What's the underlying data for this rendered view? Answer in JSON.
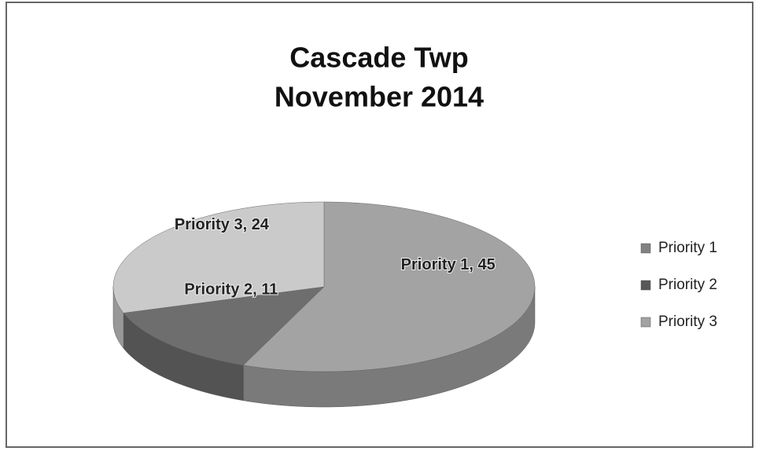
{
  "chart_data": {
    "type": "pie",
    "title": "Cascade Twp",
    "subtitle": "November 2014",
    "categories": [
      "Priority 1",
      "Priority 2",
      "Priority 3"
    ],
    "values": [
      45,
      11,
      24
    ],
    "value_labels": [
      "Priority 1, 45",
      "Priority 2, 11",
      "Priority 3, 24"
    ],
    "colors": [
      "#a3a3a3",
      "#6e6e6e",
      "#cacaca"
    ],
    "legend": "right",
    "three_d": true
  }
}
